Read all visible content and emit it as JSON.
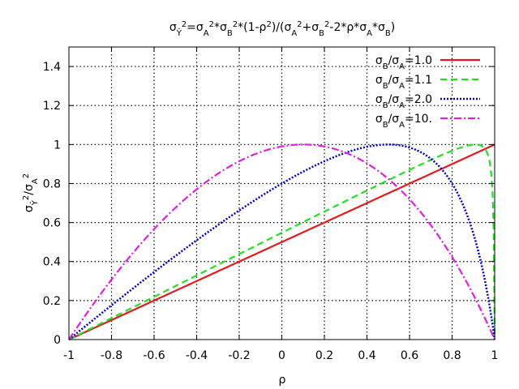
{
  "chart_data": {
    "type": "line",
    "title": {
      "parts": [
        {
          "t": "σ",
          "s": ""
        },
        {
          "t": "Ŷ",
          "s": "sub"
        },
        {
          "t": "2",
          "s": "sup"
        },
        {
          "t": "=σ",
          "s": ""
        },
        {
          "t": "A",
          "s": "sub"
        },
        {
          "t": "2",
          "s": "sup"
        },
        {
          "t": "*σ",
          "s": ""
        },
        {
          "t": "B",
          "s": "sub"
        },
        {
          "t": "2",
          "s": "sup"
        },
        {
          "t": "*(1-ρ",
          "s": ""
        },
        {
          "t": "2",
          "s": "sup"
        },
        {
          "t": ")/(σ",
          "s": ""
        },
        {
          "t": "A",
          "s": "sub"
        },
        {
          "t": "2",
          "s": "sup"
        },
        {
          "t": "+σ",
          "s": ""
        },
        {
          "t": "B",
          "s": "sub"
        },
        {
          "t": "2",
          "s": "sup"
        },
        {
          "t": "-2*ρ*σ",
          "s": ""
        },
        {
          "t": "A",
          "s": "sub"
        },
        {
          "t": "*σ",
          "s": ""
        },
        {
          "t": "B",
          "s": "sub"
        },
        {
          "t": ")",
          "s": ""
        }
      ]
    },
    "xlabel": "ρ",
    "ylabel": {
      "parts": [
        {
          "t": "σ",
          "s": ""
        },
        {
          "t": "Ŷ",
          "s": "sub"
        },
        {
          "t": "2",
          "s": "sup"
        },
        {
          "t": "/σ",
          "s": ""
        },
        {
          "t": "A",
          "s": "sub"
        },
        {
          "t": "2",
          "s": "sup"
        }
      ]
    },
    "xlim": [
      -1,
      1
    ],
    "ylim": [
      0,
      1.5
    ],
    "xticks": [
      -1,
      -0.8,
      -0.6,
      -0.4,
      -0.2,
      0,
      0.2,
      0.4,
      0.6,
      0.8,
      1
    ],
    "xtick_labels": [
      "-1",
      "-0.8",
      "-0.6",
      "-0.4",
      "-0.2",
      "0",
      "0.2",
      "0.4",
      "0.6",
      "0.8",
      "1"
    ],
    "yticks": [
      0,
      0.2,
      0.4,
      0.6,
      0.8,
      1,
      1.2,
      1.4
    ],
    "ytick_labels": [
      "0",
      "0.2",
      "0.4",
      "0.6",
      "0.8",
      "1",
      "1.2",
      "1.4"
    ],
    "grid": true,
    "legend_position": "top-right",
    "series": [
      {
        "ratio": 1.0,
        "color": "#e41a1c",
        "dash": "solid",
        "label_parts": [
          {
            "t": "σ",
            "s": ""
          },
          {
            "t": "B",
            "s": "sub"
          },
          {
            "t": "/σ",
            "s": ""
          },
          {
            "t": "A",
            "s": "sub"
          },
          {
            "t": "=1.0",
            "s": ""
          }
        ],
        "x": [
          -1,
          -0.8,
          -0.6,
          -0.4,
          -0.2,
          0,
          0.2,
          0.4,
          0.6,
          0.8,
          1
        ],
        "y": [
          0,
          0.1,
          0.2,
          0.3,
          0.4,
          0.5,
          0.6,
          0.7,
          0.8,
          0.9,
          1
        ]
      },
      {
        "ratio": 1.1,
        "color": "#22e022",
        "dash": "dashed",
        "label_parts": [
          {
            "t": "σ",
            "s": ""
          },
          {
            "t": "B",
            "s": "sub"
          },
          {
            "t": "/σ",
            "s": ""
          },
          {
            "t": "A",
            "s": "sub"
          },
          {
            "t": "=1.1",
            "s": ""
          }
        ],
        "x": [
          -1,
          -0.8,
          -0.6,
          -0.4,
          -0.2,
          0,
          0.2,
          0.4,
          0.6,
          0.8,
          0.9,
          0.95,
          0.98,
          1
        ],
        "y": [
          0,
          0.111,
          0.221,
          0.331,
          0.441,
          0.55,
          0.658,
          0.766,
          0.87,
          0.963,
          0.999,
          0.995,
          0.866,
          0
        ]
      },
      {
        "ratio": 2.0,
        "color": "#0000cc",
        "dash": "dotted",
        "label_parts": [
          {
            "t": "σ",
            "s": ""
          },
          {
            "t": "B",
            "s": "sub"
          },
          {
            "t": "/σ",
            "s": ""
          },
          {
            "t": "A",
            "s": "sub"
          },
          {
            "t": "=2.0",
            "s": ""
          }
        ],
        "x": [
          -1,
          -0.8,
          -0.6,
          -0.4,
          -0.2,
          0,
          0.2,
          0.4,
          0.5,
          0.6,
          0.8,
          0.9,
          0.95,
          1
        ],
        "y": [
          0,
          0.176,
          0.34,
          0.497,
          0.648,
          0.8,
          0.933,
          0.995,
          1.0,
          0.985,
          0.78,
          0.498,
          0.277,
          0
        ]
      },
      {
        "ratio": 10,
        "color": "#e020e0",
        "dash": "dashdot",
        "label_parts": [
          {
            "t": "σ",
            "s": ""
          },
          {
            "t": "B",
            "s": "sub"
          },
          {
            "t": "/σ",
            "s": ""
          },
          {
            "t": "A",
            "s": "sub"
          },
          {
            "t": "=10.",
            "s": ""
          }
        ],
        "x": [
          -1,
          -0.8,
          -0.6,
          -0.4,
          -0.2,
          0,
          0.1,
          0.2,
          0.4,
          0.6,
          0.8,
          1
        ],
        "y": [
          0,
          0.328,
          0.597,
          0.804,
          0.94,
          0.99,
          1.0,
          0.99,
          0.918,
          0.747,
          0.466,
          0
        ]
      }
    ]
  }
}
